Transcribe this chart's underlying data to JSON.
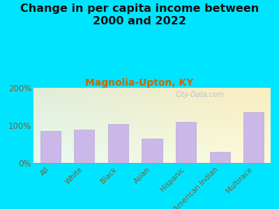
{
  "title": "Change in per capita income between\n2000 and 2022",
  "subtitle": "Magnolia-Upton, KY",
  "categories": [
    "All",
    "White",
    "Black",
    "Asian",
    "Hispanic",
    "American Indian",
    "Multirace"
  ],
  "values": [
    85,
    88,
    103,
    65,
    110,
    30,
    135
  ],
  "bar_color": "#c9b8e8",
  "bar_edge_color": "#b8a8d8",
  "title_fontsize": 11.5,
  "subtitle_fontsize": 10,
  "subtitle_color": "#cc6600",
  "tick_label_color": "#7a5c3a",
  "background_outer": "#00e5ff",
  "ylim": [
    0,
    200
  ],
  "ytick_labels": [
    "0%",
    "100%",
    "200%"
  ],
  "watermark": "City-Data.com"
}
